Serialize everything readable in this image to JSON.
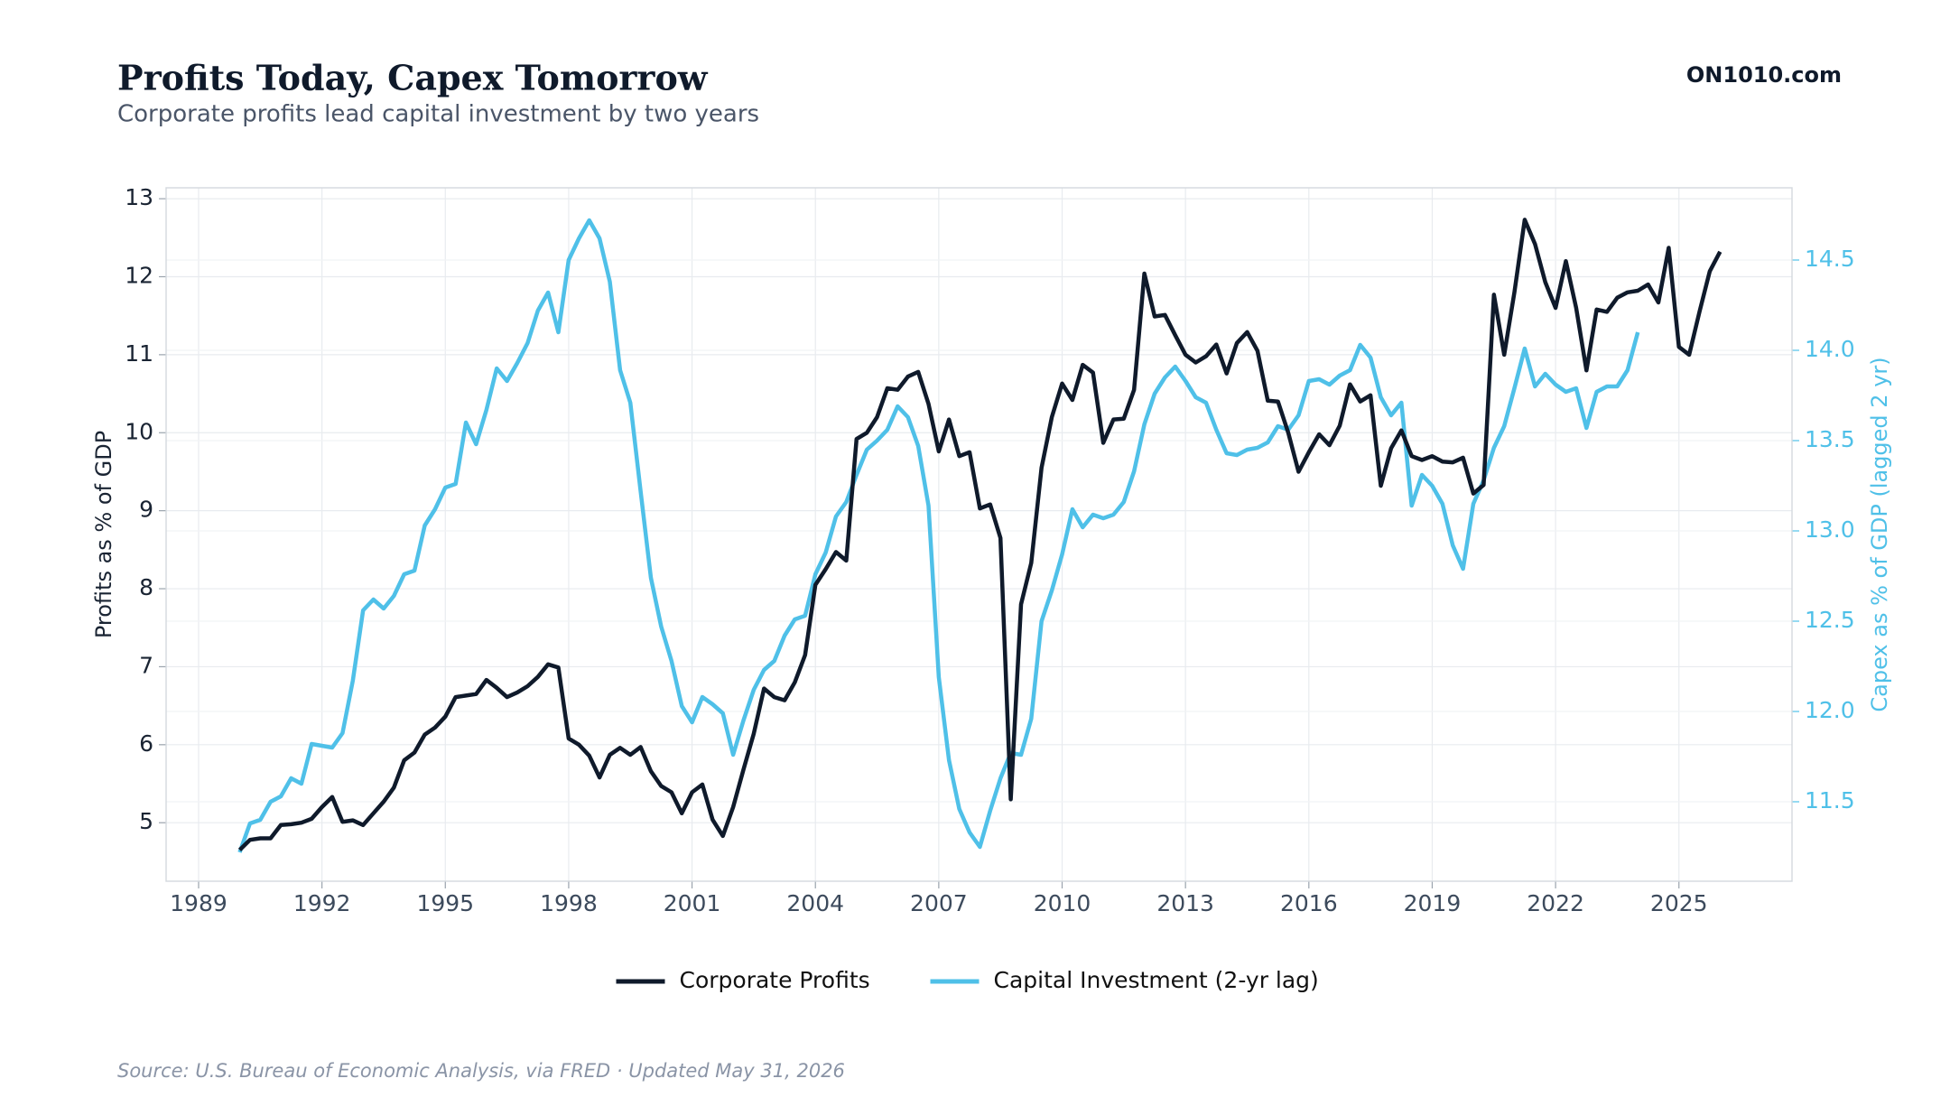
{
  "chart_data": {
    "type": "line",
    "title": "Profits Today, Capex Tomorrow",
    "subtitle": "Corporate profits lead capital investment by two years",
    "brand": "ON1010.com",
    "source": "Source: U.S. Bureau of Economic Analysis, via FRED · Updated May 31, 2026",
    "ylabel": "Profits as % of GDP",
    "y2label": "Capex as % of GDP (lagged 2 yr)",
    "x": [
      1990,
      1990.25,
      1990.5,
      1990.75,
      1991,
      1991.25,
      1991.5,
      1991.75,
      1992,
      1992.25,
      1992.5,
      1992.75,
      1993,
      1993.25,
      1993.5,
      1993.75,
      1994,
      1994.25,
      1994.5,
      1994.75,
      1995,
      1995.25,
      1995.5,
      1995.75,
      1996,
      1996.25,
      1996.5,
      1996.75,
      1997,
      1997.25,
      1997.5,
      1997.75,
      1998,
      1998.25,
      1998.5,
      1998.75,
      1999,
      1999.25,
      1999.5,
      1999.75,
      2000,
      2000.25,
      2000.5,
      2000.75,
      2001,
      2001.25,
      2001.5,
      2001.75,
      2002,
      2002.25,
      2002.5,
      2002.75,
      2003,
      2003.25,
      2003.5,
      2003.75,
      2004,
      2004.25,
      2004.5,
      2004.75,
      2005,
      2005.25,
      2005.5,
      2005.75,
      2006,
      2006.25,
      2006.5,
      2006.75,
      2007,
      2007.25,
      2007.5,
      2007.75,
      2008,
      2008.25,
      2008.5,
      2008.75,
      2009,
      2009.25,
      2009.5,
      2009.75,
      2010,
      2010.25,
      2010.5,
      2010.75,
      2011,
      2011.25,
      2011.5,
      2011.75,
      2012,
      2012.25,
      2012.5,
      2012.75,
      2013,
      2013.25,
      2013.5,
      2013.75,
      2014,
      2014.25,
      2014.5,
      2014.75,
      2015,
      2015.25,
      2015.5,
      2015.75,
      2016,
      2016.25,
      2016.5,
      2016.75,
      2017,
      2017.25,
      2017.5,
      2017.75,
      2018,
      2018.25,
      2018.5,
      2018.75,
      2019,
      2019.25,
      2019.5,
      2019.75,
      2020,
      2020.25,
      2020.5,
      2020.75,
      2021,
      2021.25,
      2021.5,
      2021.75,
      2022,
      2022.25,
      2022.5,
      2022.75,
      2023,
      2023.25,
      2023.5,
      2023.75,
      2024,
      2024.25,
      2024.5,
      2024.75,
      2025,
      2025.25,
      2025.5,
      2025.75,
      2026
    ],
    "xlim": [
      1988.21,
      2027.75
    ],
    "xticks": [
      1989,
      1992,
      1995,
      1998,
      2001,
      2004,
      2007,
      2010,
      2013,
      2016,
      2019,
      2022,
      2025
    ],
    "ylim": [
      4.25,
      13.14
    ],
    "yticks": [
      5,
      6,
      7,
      8,
      9,
      10,
      11,
      12,
      13
    ],
    "y2lim": [
      11.06,
      14.9
    ],
    "y2ticks": [
      11.5,
      {
        "value": 12,
        "label": "12.0"
      },
      12.5,
      {
        "value": 13,
        "label": "13.0"
      },
      13.5,
      {
        "value": 14,
        "label": "14.0"
      },
      14.5
    ],
    "grid": true,
    "legend": "bottom",
    "series": [
      {
        "name": "Corporate Profits",
        "color": "#0f1a2b",
        "values": [
          4.65,
          4.78,
          4.8,
          4.8,
          4.97,
          4.98,
          5.0,
          5.05,
          5.2,
          5.33,
          5.01,
          5.03,
          4.97,
          5.12,
          5.27,
          5.45,
          5.8,
          5.9,
          6.13,
          6.22,
          6.36,
          6.61,
          6.63,
          6.65,
          6.83,
          6.73,
          6.61,
          6.67,
          6.75,
          6.87,
          7.03,
          6.99,
          6.08,
          6.0,
          5.86,
          5.58,
          5.87,
          5.96,
          5.87,
          5.97,
          5.66,
          5.47,
          5.39,
          5.12,
          5.39,
          5.49,
          5.04,
          4.83,
          5.2,
          5.68,
          6.14,
          6.72,
          6.61,
          6.57,
          6.8,
          7.15,
          8.05,
          8.25,
          8.47,
          8.36,
          9.92,
          10.0,
          10.2,
          10.57,
          10.55,
          10.72,
          10.78,
          10.37,
          9.76,
          10.17,
          9.7,
          9.75,
          9.03,
          9.08,
          8.65,
          5.3,
          7.8,
          8.33,
          9.55,
          10.2,
          10.63,
          10.42,
          10.87,
          10.77,
          9.87,
          10.17,
          10.18,
          10.55,
          12.04,
          11.49,
          11.51,
          11.25,
          11.0,
          10.9,
          10.98,
          11.13,
          10.76,
          11.15,
          11.29,
          11.05,
          10.41,
          10.4,
          10.0,
          9.5,
          9.75,
          9.98,
          9.84,
          10.09,
          10.62,
          10.4,
          10.48,
          9.32,
          9.8,
          10.03,
          9.7,
          9.65,
          9.7,
          9.63,
          9.62,
          9.68,
          9.22,
          9.33,
          11.77,
          11.0,
          11.8,
          12.73,
          12.42,
          11.93,
          11.6,
          12.2,
          11.6,
          10.8,
          11.58,
          11.55,
          11.73,
          11.8,
          11.82,
          11.9,
          11.67,
          12.37,
          11.1,
          11.0,
          11.55,
          12.07,
          12.32
        ]
      },
      {
        "name": "Capital Investment (2-yr lag)",
        "color": "#4fc0e8",
        "axis": "y2",
        "values": [
          11.22,
          11.38,
          11.4,
          11.5,
          11.53,
          11.63,
          11.6,
          11.82,
          11.81,
          11.8,
          11.88,
          12.17,
          12.56,
          12.62,
          12.57,
          12.64,
          12.76,
          12.78,
          13.03,
          13.12,
          13.24,
          13.26,
          13.6,
          13.48,
          13.67,
          13.9,
          13.83,
          13.93,
          14.04,
          14.22,
          14.32,
          14.1,
          14.5,
          14.62,
          14.72,
          14.62,
          14.38,
          13.89,
          13.71,
          13.22,
          12.74,
          12.47,
          12.28,
          12.03,
          11.94,
          12.08,
          12.04,
          11.99,
          11.76,
          11.95,
          12.12,
          12.23,
          12.28,
          12.42,
          12.51,
          12.53,
          12.76,
          12.88,
          13.08,
          13.16,
          13.31,
          13.45,
          13.5,
          13.56,
          13.69,
          13.63,
          13.47,
          13.14,
          12.19,
          11.73,
          11.46,
          11.33,
          11.25,
          11.45,
          11.63,
          11.77,
          11.76,
          11.96,
          12.5,
          12.67,
          12.87,
          13.12,
          13.02,
          13.09,
          13.07,
          13.09,
          13.16,
          13.33,
          13.59,
          13.76,
          13.85,
          13.91,
          13.83,
          13.74,
          13.71,
          13.56,
          13.43,
          13.42,
          13.45,
          13.46,
          13.49,
          13.58,
          13.56,
          13.64,
          13.83,
          13.84,
          13.81,
          13.86,
          13.89,
          14.03,
          13.96,
          13.74,
          13.64,
          13.71,
          13.14,
          13.31,
          13.25,
          13.15,
          12.92,
          12.79,
          13.15,
          13.28,
          13.46,
          13.58,
          13.79,
          14.01,
          13.8,
          13.87,
          13.81,
          13.77,
          13.79,
          13.57,
          13.77,
          13.8,
          13.8,
          13.89,
          14.1,
          null,
          null,
          null,
          null,
          null,
          null,
          null,
          null
        ]
      }
    ]
  }
}
